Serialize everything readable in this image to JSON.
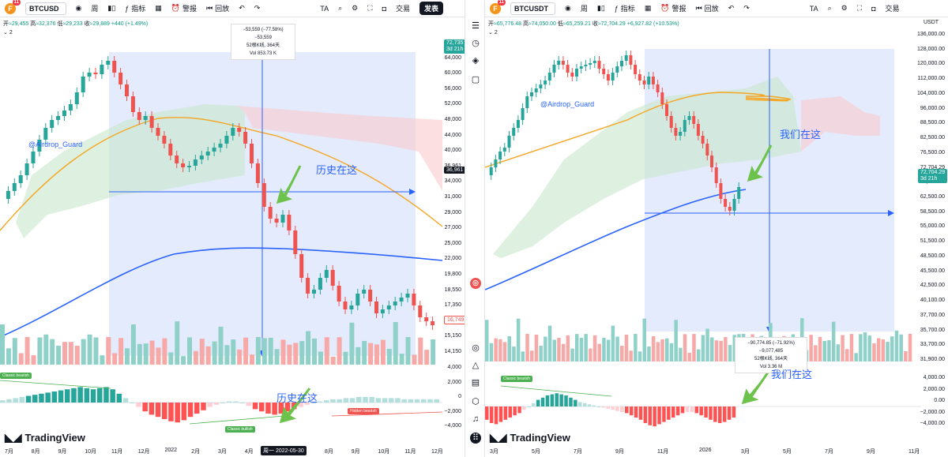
{
  "left": {
    "symbol": "BTCUSD",
    "logo_badge": "11",
    "toolbar": {
      "interval": "周",
      "indicators": "指标",
      "alert": "警报",
      "replay": "回放",
      "ta": "TA",
      "trade": "交易",
      "publish": "发表"
    },
    "ohlc": {
      "open_label": "开",
      "open": "≈29,455",
      "high_label": "高",
      "high": "≈32,376",
      "low_label": "低",
      "low": "≈29,233",
      "close_label": "收",
      "close": "≈29,889",
      "change": "+440 (+1.49%)"
    },
    "indicator_count": "2",
    "price_ticks": [
      "75,000",
      "64,000",
      "60,000",
      "56,000",
      "52,000",
      "48,000",
      "44,000",
      "40,000",
      "36,961",
      "34,000",
      "31,000",
      "29,000",
      "27,000",
      "25,000",
      "22,000",
      "19,800",
      "18,550",
      "17,350",
      "16,150",
      "15,150",
      "14,150"
    ],
    "price_tag_top": "72,735",
    "price_tag_top_sub": "3d 21h",
    "price_tag_current": "36,961",
    "price_tag_low": "16,749",
    "osc_ticks": [
      "4,000",
      "2,000",
      "0",
      "−2,000",
      "−4,000"
    ],
    "x_ticks": [
      "7月",
      "8月",
      "9月",
      "10月",
      "11月",
      "12月",
      "2022",
      "2月",
      "3月",
      "4月",
      "5月",
      "7月",
      "8月",
      "9月",
      "10月",
      "11月",
      "12月"
    ],
    "x_cursor_label": "周一  2022-05-30",
    "measure": {
      "line1": "−53,559 (−77.58%) −53,559",
      "line2": "52根K线, 364天",
      "line3": "Vol 853.73 K"
    },
    "watermark": "@Airdrop_Guard",
    "annotation_price": "历史在这",
    "annotation_osc": "历史在这",
    "label_classic_bearish": "Classic bearish",
    "label_hidden_bearish": "Hidden bearish",
    "label_classic_bullish": "Classic bullish",
    "brand": "TradingView"
  },
  "right": {
    "symbol": "BTCUSDT",
    "logo_badge": "11",
    "toolbar": {
      "interval": "周",
      "indicators": "指标",
      "alert": "警报",
      "replay": "回放",
      "ta": "TA",
      "trade": "交易"
    },
    "ohlc": {
      "open_label": "开",
      "open": "≈65,776.48",
      "high_label": "高",
      "high": "≈74,050.00",
      "low_label": "低",
      "low": "≈65,259.21",
      "close_label": "收",
      "close": "≈72,704.29",
      "change": "+6,927.82 (+10.53%)"
    },
    "indicator_count": "2",
    "currency": "USDT",
    "price_ticks": [
      "136,000.00",
      "128,000.00",
      "120,000.00",
      "112,000.00",
      "104,000.00",
      "96,000.00",
      "88,500.00",
      "82,500.00",
      "76,500.00",
      "72,704.29",
      "66,500.00",
      "62,500.00",
      "58,500.00",
      "55,000.00",
      "51,500.00",
      "48,500.00",
      "45,500.00",
      "42,500.00",
      "40,100.00",
      "37,700.00",
      "35,700.00",
      "33,700.00",
      "31,900.00"
    ],
    "price_tag_sub": "3d 21h",
    "osc_ticks": [
      "4,000.00",
      "2,000.00",
      "0.00",
      "−2,000.00",
      "−4,000.00"
    ],
    "x_ticks": [
      "3月",
      "5月",
      "7月",
      "9月",
      "11月",
      "2026",
      "3月",
      "5月",
      "7月",
      "9月",
      "11月"
    ],
    "measure": {
      "line1": "−90,774.85 (−71.92%) −9,077,485",
      "line2": "52根K线, 364天",
      "line3": "Vol 3.36 M"
    },
    "watermark": "@Airdrop_Guard",
    "annotation_price": "我们在这",
    "annotation_osc": "我们在这",
    "label_classic_bearish": "Classic bearish",
    "brand": "TradingView"
  },
  "colors": {
    "up": "#26a69a",
    "down": "#ef5350",
    "ma_orange": "#f5a623",
    "ma_blue": "#2962ff",
    "measure_fill": "#dbe4fb",
    "annotation": "#2962ff",
    "arrow_green": "#6cc24a"
  }
}
